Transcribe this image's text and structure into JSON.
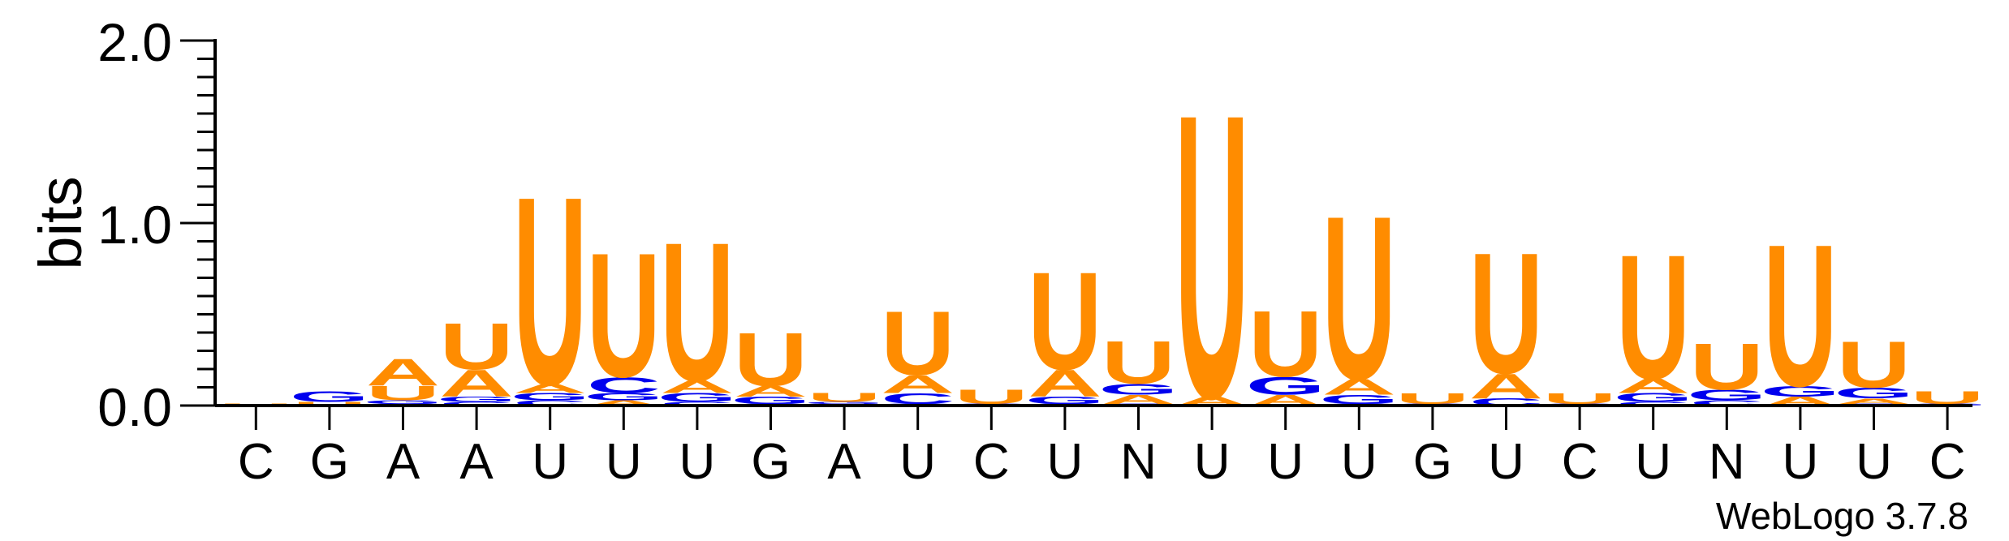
{
  "chart_data": {
    "type": "sequence-logo",
    "ylabel": "bits",
    "ylim": [
      0,
      2.0
    ],
    "yticks": [
      {
        "value": 0,
        "label": "0.0"
      },
      {
        "value": 1,
        "label": "1.0"
      },
      {
        "value": 2,
        "label": "2.0"
      }
    ],
    "consensus": [
      "C",
      "G",
      "A",
      "A",
      "U",
      "U",
      "U",
      "G",
      "A",
      "U",
      "C",
      "U",
      "N",
      "U",
      "U",
      "U",
      "G",
      "U",
      "C",
      "U",
      "N",
      "U",
      "U",
      "C"
    ],
    "colors": {
      "U": "#ff8c00",
      "A": "#ff8c00",
      "G": "#0000ee",
      "C": "#0000ee"
    },
    "positions": [
      {
        "stack": [
          [
            "U",
            0.01
          ]
        ]
      },
      {
        "stack": [
          [
            "U",
            0.02
          ],
          [
            "G",
            0.06
          ]
        ]
      },
      {
        "stack": [
          [
            "C",
            0.01
          ],
          [
            "G",
            0.02
          ],
          [
            "U",
            0.08
          ],
          [
            "A",
            0.15
          ]
        ]
      },
      {
        "stack": [
          [
            "C",
            0.02
          ],
          [
            "G",
            0.03
          ],
          [
            "A",
            0.15
          ],
          [
            "U",
            0.26
          ]
        ]
      },
      {
        "stack": [
          [
            "C",
            0.03
          ],
          [
            "G",
            0.04
          ],
          [
            "A",
            0.05
          ],
          [
            "U",
            1.06
          ]
        ]
      },
      {
        "stack": [
          [
            "A",
            0.03
          ],
          [
            "G",
            0.04
          ],
          [
            "C",
            0.09
          ],
          [
            "U",
            0.7
          ]
        ]
      },
      {
        "stack": [
          [
            "C",
            0.02
          ],
          [
            "G",
            0.05
          ],
          [
            "A",
            0.07
          ],
          [
            "U",
            0.78
          ]
        ]
      },
      {
        "stack": [
          [
            "C",
            0.01
          ],
          [
            "G",
            0.04
          ],
          [
            "A",
            0.06
          ],
          [
            "U",
            0.3
          ]
        ]
      },
      {
        "stack": [
          [
            "C",
            0.01
          ],
          [
            "G",
            0.01
          ],
          [
            "U",
            0.05
          ]
        ]
      },
      {
        "stack": [
          [
            "G",
            0.01
          ],
          [
            "C",
            0.06
          ],
          [
            "A",
            0.1
          ],
          [
            "U",
            0.36
          ]
        ]
      },
      {
        "stack": [
          [
            "G",
            0.01
          ],
          [
            "U",
            0.08
          ]
        ]
      },
      {
        "stack": [
          [
            "C",
            0.01
          ],
          [
            "G",
            0.04
          ],
          [
            "A",
            0.15
          ],
          [
            "U",
            0.55
          ]
        ]
      },
      {
        "stack": [
          [
            "C",
            0.01
          ],
          [
            "A",
            0.05
          ],
          [
            "G",
            0.06
          ],
          [
            "U",
            0.24
          ]
        ]
      },
      {
        "stack": [
          [
            "A",
            0.05
          ],
          [
            "U",
            1.6
          ]
        ]
      },
      {
        "stack": [
          [
            "A",
            0.06
          ],
          [
            "G",
            0.1
          ],
          [
            "U",
            0.37
          ]
        ]
      },
      {
        "stack": [
          [
            "C",
            0.01
          ],
          [
            "G",
            0.05
          ],
          [
            "A",
            0.09
          ],
          [
            "U",
            0.92
          ]
        ]
      },
      {
        "stack": [
          [
            "G",
            0.01
          ],
          [
            "U",
            0.06
          ]
        ]
      },
      {
        "stack": [
          [
            "C",
            0.04
          ],
          [
            "A",
            0.14
          ],
          [
            "U",
            0.68
          ]
        ]
      },
      {
        "stack": [
          [
            "G",
            0.01
          ],
          [
            "U",
            0.06
          ]
        ]
      },
      {
        "stack": [
          [
            "C",
            0.02
          ],
          [
            "G",
            0.05
          ],
          [
            "A",
            0.08
          ],
          [
            "U",
            0.7
          ]
        ]
      },
      {
        "stack": [
          [
            "C",
            0.03
          ],
          [
            "G",
            0.06
          ],
          [
            "U",
            0.26
          ]
        ]
      },
      {
        "stack": [
          [
            "A",
            0.05
          ],
          [
            "G",
            0.06
          ],
          [
            "U",
            0.8
          ]
        ]
      },
      {
        "stack": [
          [
            "C",
            0.01
          ],
          [
            "A",
            0.03
          ],
          [
            "G",
            0.06
          ],
          [
            "U",
            0.26
          ]
        ]
      },
      {
        "stack": [
          [
            "G",
            0.01
          ],
          [
            "U",
            0.07
          ]
        ]
      }
    ]
  },
  "watermark": "WebLogo 3.7.8"
}
